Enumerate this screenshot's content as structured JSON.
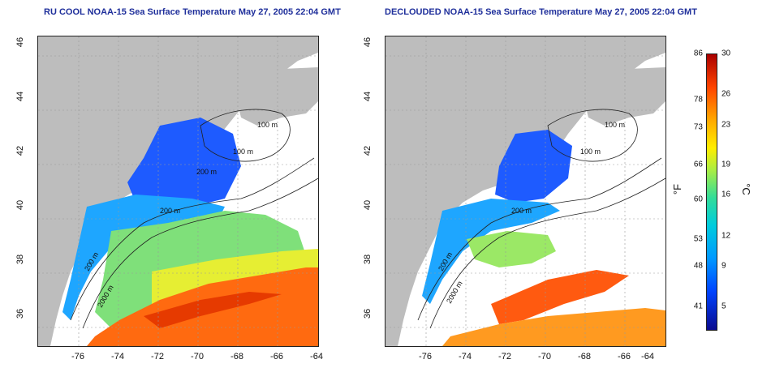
{
  "titles": {
    "left": "RU COOL NOAA-15 Sea Surface Temperature May 27, 2005 22:04 GMT",
    "right": "DECLOUDED NOAA-15 Sea Surface Temperature May 27, 2005 22:04 GMT"
  },
  "axes": {
    "x_ticks": [
      "-76",
      "-74",
      "-72",
      "-70",
      "-68",
      "-66",
      "-64"
    ],
    "y_ticks": [
      "46",
      "44",
      "42",
      "40",
      "38",
      "36"
    ]
  },
  "contour_labels": {
    "left": [
      "100 m",
      "100 m",
      "200 m",
      "200 m",
      "2000 m",
      "200 m"
    ],
    "right": [
      "100 m",
      "100 m",
      "200 m",
      "200 m",
      "2000 m"
    ]
  },
  "colorbar": {
    "fahrenheit": [
      "86",
      "78",
      "73",
      "66",
      "60",
      "53",
      "48",
      "41"
    ],
    "celsius": [
      "30",
      "26",
      "23",
      "19",
      "16",
      "12",
      "9",
      "5"
    ],
    "unit_f": "°F",
    "unit_c": "°C"
  },
  "colors": {
    "land": "#bdbdbd",
    "title": "#1f2f9b"
  }
}
